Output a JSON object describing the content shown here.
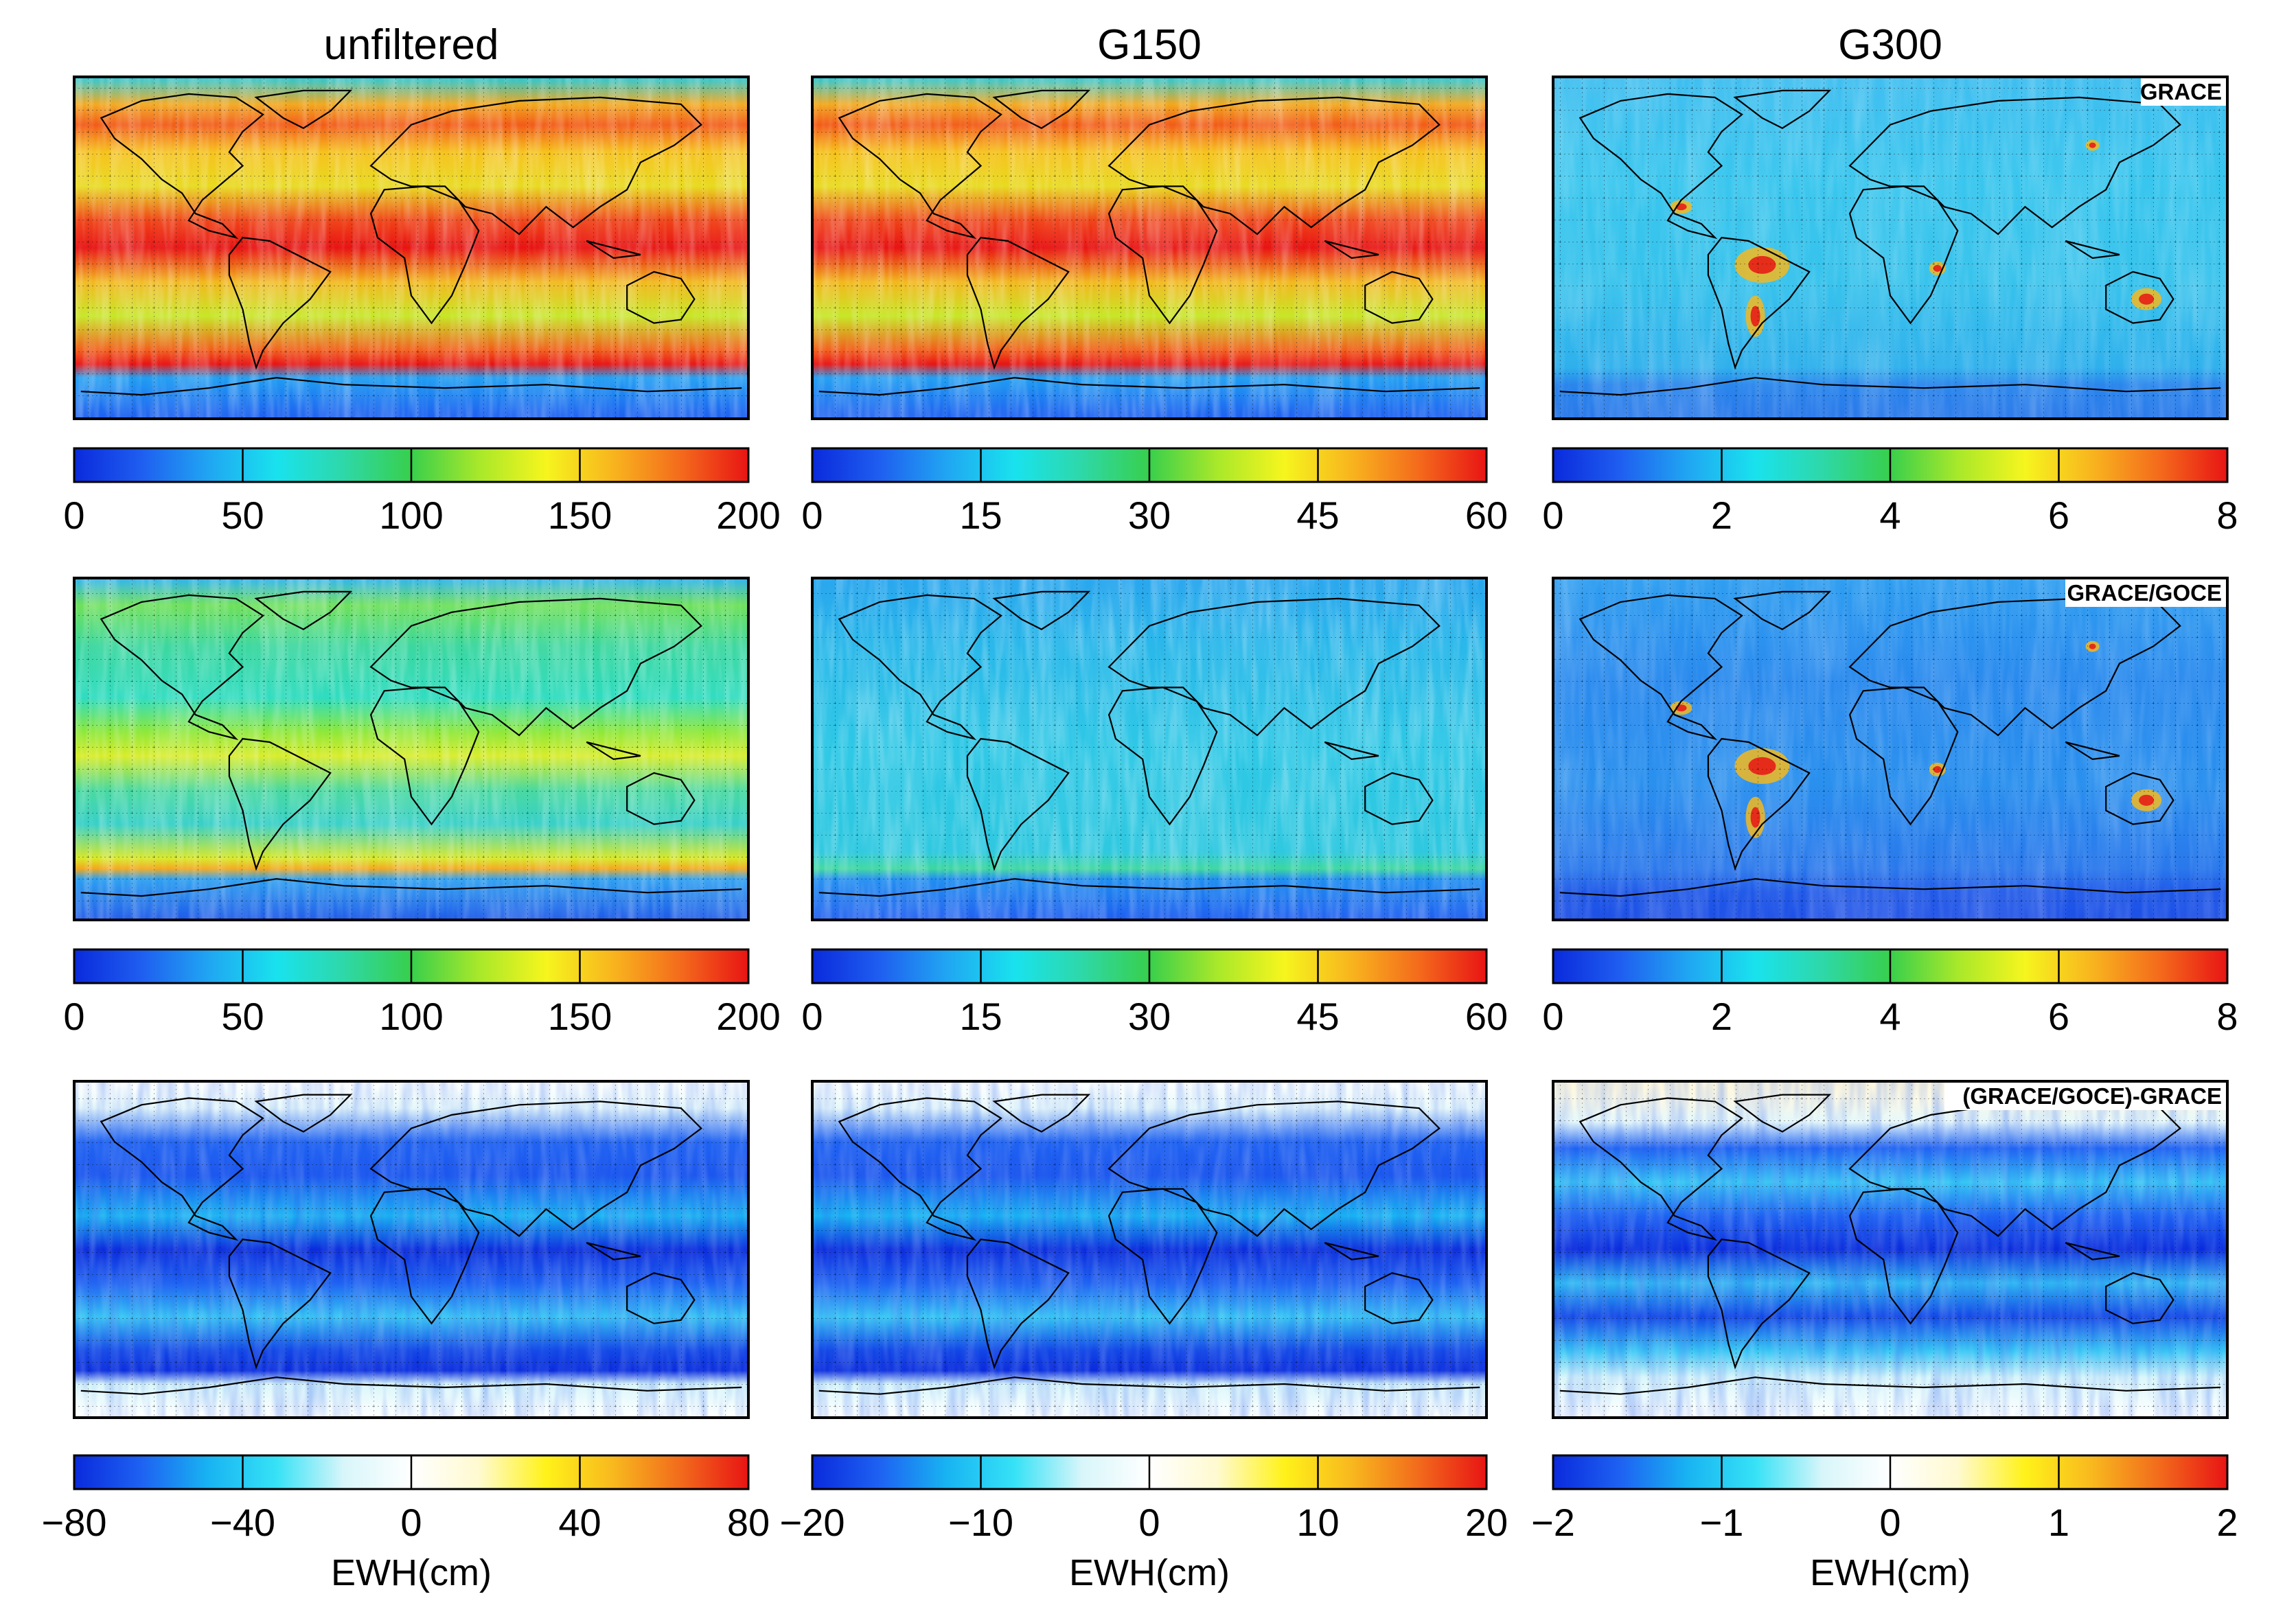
{
  "columns": [
    "unfiltered",
    "G150",
    "G300"
  ],
  "row_labels": [
    "GRACE",
    "GRACE/GOCE",
    "(GRACE/GOCE)-GRACE"
  ],
  "colorbar_unit": "EWH(cm)",
  "colormap": {
    "sequential": [
      "#0a2adc",
      "#1f5ef0",
      "#20a6f2",
      "#19e2ee",
      "#2ed8a8",
      "#38cf4c",
      "#a8e82a",
      "#f6f51e",
      "#f8b41e",
      "#f46a1c",
      "#e81414"
    ],
    "diverging": [
      "#0a2adc",
      "#1e62f2",
      "#18b4f2",
      "#36e2f6",
      "#d8f6fa",
      "#ffffff",
      "#fffad0",
      "#fff21a",
      "#f8b81e",
      "#f26a1c",
      "#e81414"
    ]
  },
  "chart_data": [
    {
      "type": "heatmap",
      "title": "unfiltered",
      "label": "",
      "row": 1,
      "col": 1,
      "colormap": "sequential",
      "ticks": [
        "0",
        "50",
        "100",
        "150",
        "200"
      ],
      "clim": [
        0,
        200
      ],
      "xlabel": ""
    },
    {
      "type": "heatmap",
      "title": "G150",
      "label": "",
      "row": 1,
      "col": 2,
      "colormap": "sequential",
      "ticks": [
        "0",
        "15",
        "30",
        "45",
        "60"
      ],
      "clim": [
        0,
        60
      ],
      "xlabel": ""
    },
    {
      "type": "heatmap",
      "title": "G300",
      "label": "GRACE",
      "row": 1,
      "col": 3,
      "colormap": "sequential",
      "ticks": [
        "0",
        "2",
        "4",
        "6",
        "8"
      ],
      "clim": [
        0,
        8
      ],
      "xlabel": ""
    },
    {
      "type": "heatmap",
      "title": "",
      "label": "",
      "row": 2,
      "col": 1,
      "colormap": "sequential",
      "ticks": [
        "0",
        "50",
        "100",
        "150",
        "200"
      ],
      "clim": [
        0,
        200
      ],
      "xlabel": ""
    },
    {
      "type": "heatmap",
      "title": "",
      "label": "",
      "row": 2,
      "col": 2,
      "colormap": "sequential",
      "ticks": [
        "0",
        "15",
        "30",
        "45",
        "60"
      ],
      "clim": [
        0,
        60
      ],
      "xlabel": ""
    },
    {
      "type": "heatmap",
      "title": "",
      "label": "GRACE/GOCE",
      "row": 2,
      "col": 3,
      "colormap": "sequential",
      "ticks": [
        "0",
        "2",
        "4",
        "6",
        "8"
      ],
      "clim": [
        0,
        8
      ],
      "xlabel": ""
    },
    {
      "type": "heatmap",
      "title": "",
      "label": "",
      "row": 3,
      "col": 1,
      "colormap": "diverging",
      "ticks": [
        "−80",
        "−40",
        "0",
        "40",
        "80"
      ],
      "clim": [
        -80,
        80
      ],
      "xlabel": "EWH(cm)"
    },
    {
      "type": "heatmap",
      "title": "",
      "label": "",
      "row": 3,
      "col": 2,
      "colormap": "diverging",
      "ticks": [
        "−20",
        "−10",
        "0",
        "10",
        "20"
      ],
      "clim": [
        -20,
        20
      ],
      "xlabel": "EWH(cm)"
    },
    {
      "type": "heatmap",
      "title": "",
      "label": "(GRACE/GOCE)-GRACE",
      "row": 3,
      "col": 3,
      "colormap": "diverging",
      "ticks": [
        "−2",
        "−1",
        "0",
        "1",
        "2"
      ],
      "clim": [
        -2,
        2
      ],
      "xlabel": "EWH(cm)"
    }
  ]
}
